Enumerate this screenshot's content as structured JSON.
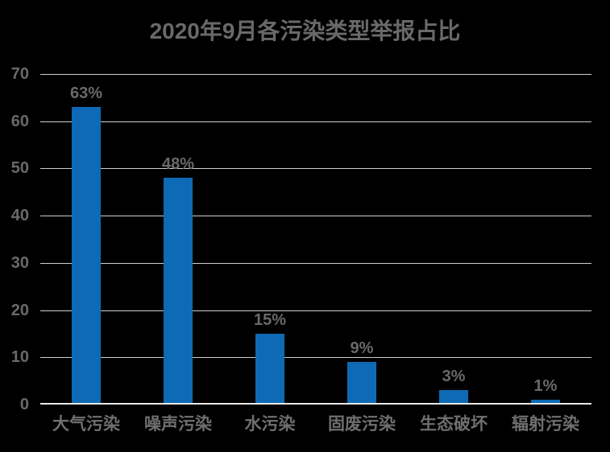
{
  "title": "2020年9月各污染类型举报占比",
  "chart_data": {
    "type": "bar",
    "title": "2020年9月各污染类型举报占比",
    "categories": [
      "大气污染",
      "噪声污染",
      "水污染",
      "固废污染",
      "生态破坏",
      "辐射污染"
    ],
    "values": [
      63,
      48,
      15,
      9,
      3,
      1
    ],
    "value_labels": [
      "63%",
      "48%",
      "15%",
      "9%",
      "3%",
      "1%"
    ],
    "yticks": [
      0,
      10,
      20,
      30,
      40,
      50,
      60,
      70
    ],
    "ylim": [
      0,
      70
    ],
    "xlabel": "",
    "ylabel": "",
    "grid": "horizontal",
    "legend": "none",
    "colors": {
      "background": "#000000",
      "bar": "#0e6ab4",
      "title_text": "#696969",
      "axis_text": "#6f6f6f",
      "gridline": "#cfcfcf",
      "baseline": "#e8e8e8"
    }
  }
}
